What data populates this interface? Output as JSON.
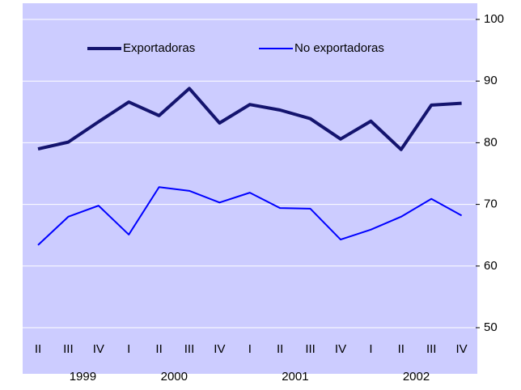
{
  "chart_data": {
    "type": "line",
    "groups": [
      {
        "name": "1999",
        "categories": [
          "II",
          "III",
          "IV"
        ]
      },
      {
        "name": "2000",
        "categories": [
          "I",
          "II",
          "III",
          "IV"
        ]
      },
      {
        "name": "2001",
        "categories": [
          "I",
          "II",
          "III",
          "IV"
        ]
      },
      {
        "name": "2002",
        "categories": [
          "I",
          "II",
          "III",
          "IV"
        ]
      }
    ],
    "series": [
      {
        "name": "Exportadoras",
        "color": "#14146e",
        "values": [
          79.0,
          80.1,
          83.4,
          86.6,
          84.4,
          88.8,
          83.2,
          86.2,
          85.3,
          83.9,
          80.6,
          83.5,
          78.9,
          86.1,
          86.4
        ]
      },
      {
        "name": "No exportadoras",
        "color": "#0000ff",
        "values": [
          63.4,
          68.0,
          69.8,
          65.1,
          72.8,
          72.2,
          70.3,
          71.9,
          69.4,
          69.3,
          64.3,
          65.9,
          68.0,
          70.9,
          68.2
        ]
      }
    ],
    "ylim": [
      50,
      100
    ],
    "yticks": [
      50,
      60,
      70,
      80,
      90,
      100
    ],
    "grid": true
  }
}
